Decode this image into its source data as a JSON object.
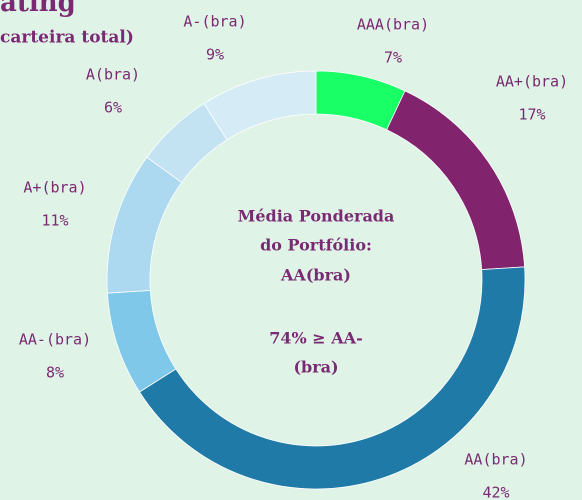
{
  "chart_data": {
    "type": "donut",
    "title": "ating",
    "subtitle": "carteira total)",
    "categories": [
      "AAA(bra)",
      "AA+(bra)",
      "AA(bra)",
      "AA-(bra)",
      "A+(bra)",
      "A(bra)",
      "A-(bra)"
    ],
    "values": [
      7,
      17,
      42,
      8,
      11,
      6,
      9
    ],
    "value_labels": [
      "7%",
      "17%",
      "42%",
      "8%",
      "11%",
      "6%",
      "9%"
    ],
    "colors": [
      "#19ff66",
      "#82236e",
      "#1f7aa8",
      "#7fc8e9",
      "#acd9f0",
      "#c3e2f2",
      "#d5ebf5"
    ],
    "center_text": [
      "Média Ponderada",
      "do Portfólio:",
      "AA(bra)",
      "74% ≥ AA-",
      "(bra)"
    ]
  }
}
